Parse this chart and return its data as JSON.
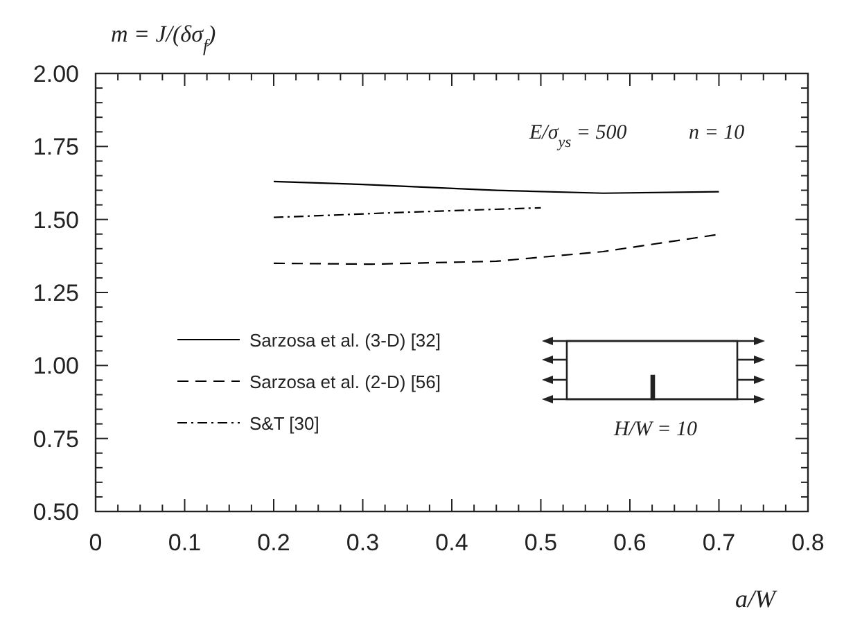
{
  "chart_data": {
    "type": "line",
    "ylabel": "m = J/(δσ$_{f}$)",
    "xlabel": "a/W",
    "xlim": [
      0,
      0.8
    ],
    "ylim": [
      0.5,
      2.0
    ],
    "xticks": [
      0,
      0.1,
      0.2,
      0.3,
      0.4,
      0.5,
      0.6,
      0.7,
      0.8
    ],
    "yticks": [
      {
        "value": 0.5,
        "label": "0.50"
      },
      {
        "value": 0.75,
        "label": "0.75"
      },
      {
        "value": 1.0,
        "label": "1.00"
      },
      {
        "value": 1.25,
        "label": "1.25"
      },
      {
        "value": 1.5,
        "label": "1.50"
      },
      {
        "value": 1.75,
        "label": "1.75"
      },
      {
        "value": 2.0,
        "label": "2.00"
      }
    ],
    "grid": false,
    "legend": "left",
    "annotations": [
      "E/σ$_{ys}$ = 500",
      "n = 10",
      "H/W = 10"
    ],
    "series": [
      {
        "name": "Sarzosa et al. (3-D) [32]",
        "color": "#000000",
        "line_style": "solid",
        "x": [
          0.2,
          0.3,
          0.45,
          0.57,
          0.7
        ],
        "values": [
          1.63,
          1.62,
          1.6,
          1.59,
          1.595
        ]
      },
      {
        "name": "Sarzosa et al. (2-D) [56]",
        "color": "#000000",
        "line_style": "dashed",
        "x": [
          0.2,
          0.31,
          0.45,
          0.57,
          0.7
        ],
        "values": [
          1.35,
          1.347,
          1.357,
          1.39,
          1.449
        ]
      },
      {
        "name": "S&T [30]",
        "color": "#000000",
        "line_style": "dashdot",
        "x": [
          0.2,
          0.35,
          0.5
        ],
        "values": [
          1.507,
          1.525,
          1.54
        ]
      }
    ]
  }
}
